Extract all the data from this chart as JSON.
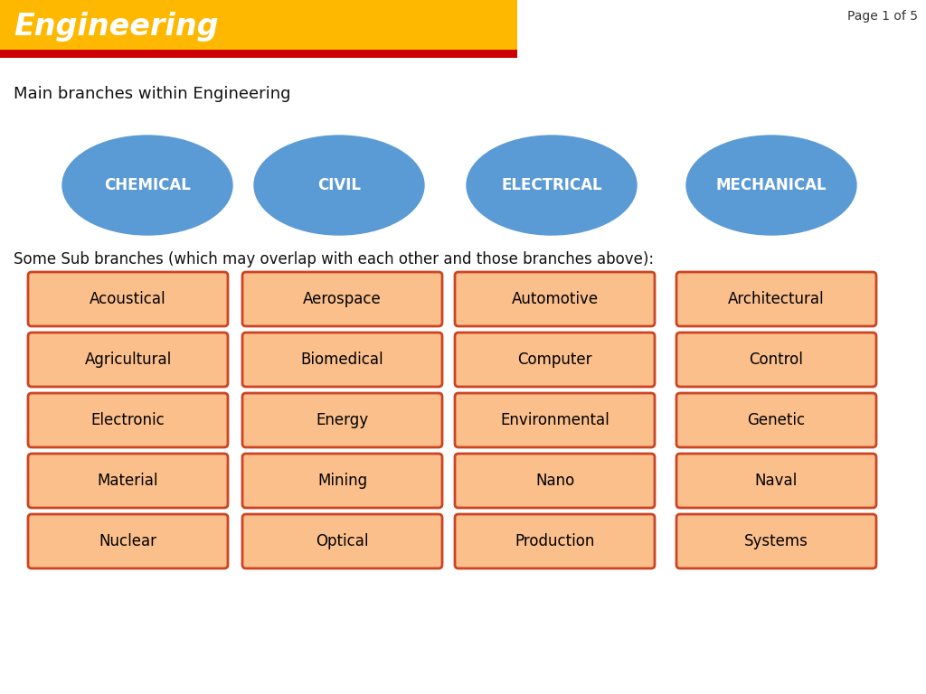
{
  "title": "Engineering",
  "title_bg": "#FFB800",
  "title_color": "#FFFFFF",
  "title_stripe_color": "#CC0000",
  "page_label": "Page 1 of 5",
  "main_label": "Main branches within Engineering",
  "sub_label": "Some Sub branches (which may overlap with each other and those branches above):",
  "main_branches": [
    "CHEMICAL",
    "CIVIL",
    "ELECTRICAL",
    "MECHANICAL"
  ],
  "ellipse_color": "#5B9BD5",
  "ellipse_edge": "#5B9BD5",
  "ellipse_text_color": "#FFFFFF",
  "sub_branches": [
    [
      "Acoustical",
      "Aerospace",
      "Automotive",
      "Architectural"
    ],
    [
      "Agricultural",
      "Biomedical",
      "Computer",
      "Control"
    ],
    [
      "Electronic",
      "Energy",
      "Environmental",
      "Genetic"
    ],
    [
      "Material",
      "Mining",
      "Nano",
      "Naval"
    ],
    [
      "Nuclear",
      "Optical",
      "Production",
      "Systems"
    ]
  ],
  "box_fill": "#FBBF8C",
  "box_edge": "#CC4422",
  "box_text_color": "#000000",
  "background_color": "#FFFFFF",
  "fig_width": 10.24,
  "fig_height": 7.68,
  "dpi": 100
}
